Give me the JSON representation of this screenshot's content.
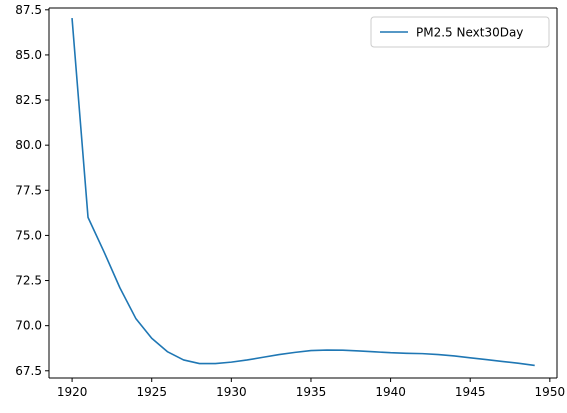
{
  "chart_data": {
    "type": "line",
    "title": "",
    "xlabel": "",
    "ylabel": "",
    "xlim": [
      1918.55,
      1950.45
    ],
    "ylim": [
      67.1,
      87.6
    ],
    "xticks": [
      1920,
      1925,
      1930,
      1935,
      1940,
      1945,
      1950
    ],
    "yticks": [
      67.5,
      70.0,
      72.5,
      75.0,
      77.5,
      80.0,
      82.5,
      85.0,
      87.5
    ],
    "xtick_labels": [
      "1920",
      "1925",
      "1930",
      "1935",
      "1940",
      "1945",
      "1950"
    ],
    "ytick_labels": [
      "67.5",
      "70.0",
      "72.5",
      "75.0",
      "77.5",
      "80.0",
      "82.5",
      "85.0",
      "87.5"
    ],
    "grid": false,
    "legend_position": "top-right",
    "series": [
      {
        "name": "PM2.5 Next30Day",
        "color": "#1f77b4",
        "x": [
          1920,
          1921,
          1922,
          1923,
          1924,
          1925,
          1926,
          1927,
          1928,
          1929,
          1930,
          1931,
          1932,
          1933,
          1934,
          1935,
          1936,
          1937,
          1938,
          1939,
          1940,
          1941,
          1942,
          1943,
          1944,
          1945,
          1946,
          1947,
          1948,
          1949
        ],
        "y": [
          87.0,
          76.0,
          74.1,
          72.1,
          70.4,
          69.3,
          68.55,
          68.1,
          67.9,
          67.9,
          67.98,
          68.1,
          68.25,
          68.4,
          68.52,
          68.62,
          68.65,
          68.64,
          68.6,
          68.55,
          68.5,
          68.47,
          68.45,
          68.4,
          68.32,
          68.22,
          68.12,
          68.02,
          67.92,
          67.8
        ]
      }
    ]
  }
}
